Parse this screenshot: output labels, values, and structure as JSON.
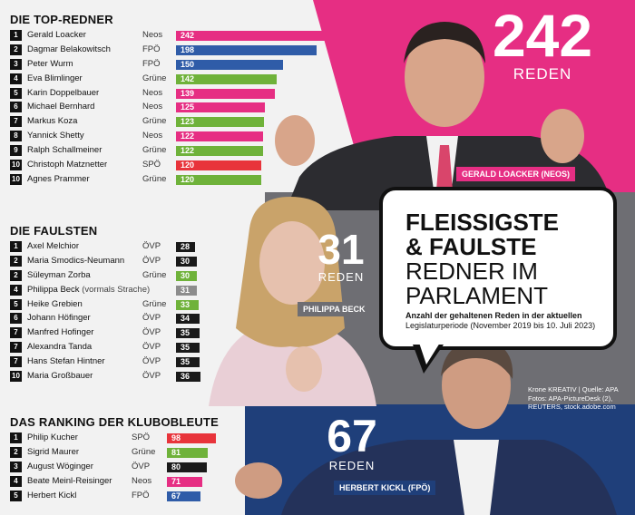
{
  "colors": {
    "Neos": "#e62e83",
    "FPÖ": "#2f5ca8",
    "Grüne": "#6fb23a",
    "SPÖ": "#e8343b",
    "ÖVP": "#1a1a1a",
    "Strache": "#8c8c8c"
  },
  "headline": {
    "line1": "FLEISSIGSTE",
    "line2": "& FAULSTE",
    "line3": "REDNER IM",
    "line4": "PARLAMENT",
    "sub_a": "Anzahl der gehaltenen Reden in der aktuellen",
    "sub_b": "Legislaturperiode (November 2019 bis 10. Juli 2023)"
  },
  "credit": {
    "line1": "Krone KREATIV | Quelle: APA",
    "line2": "Fotos: APA-PictureDesk (2),",
    "line3": "REUTERS, stock.adobe.com"
  },
  "callouts": [
    {
      "number": "242",
      "sub": "REDEN",
      "caption": "GERALD LOACKER (NEOS)"
    },
    {
      "number": "31",
      "sub": "REDEN",
      "caption": "PHILIPPA BECK"
    },
    {
      "number": "67",
      "sub": "REDEN",
      "caption": "HERBERT KICKL (FPÖ)"
    }
  ],
  "chart_data": [
    {
      "type": "bar",
      "title": "DIE TOP-REDNER",
      "xlim": [
        0,
        242
      ],
      "rows": [
        {
          "rank": "1",
          "name": "Gerald Loacker",
          "note": "",
          "party": "Neos",
          "value": 242
        },
        {
          "rank": "2",
          "name": "Dagmar Belakowitsch",
          "note": "",
          "party": "FPÖ",
          "value": 198
        },
        {
          "rank": "3",
          "name": "Peter Wurm",
          "note": "",
          "party": "FPÖ",
          "value": 150
        },
        {
          "rank": "4",
          "name": "Eva Blimlinger",
          "note": "",
          "party": "Grüne",
          "value": 142
        },
        {
          "rank": "5",
          "name": "Karin Doppelbauer",
          "note": "",
          "party": "Neos",
          "value": 139
        },
        {
          "rank": "6",
          "name": "Michael Bernhard",
          "note": "",
          "party": "Neos",
          "value": 125
        },
        {
          "rank": "7",
          "name": "Markus Koza",
          "note": "",
          "party": "Grüne",
          "value": 123
        },
        {
          "rank": "8",
          "name": "Yannick Shetty",
          "note": "",
          "party": "Neos",
          "value": 122
        },
        {
          "rank": "9",
          "name": "Ralph Schallmeiner",
          "note": "",
          "party": "Grüne",
          "value": 122
        },
        {
          "rank": "10",
          "name": "Christoph Matznetter",
          "note": "",
          "party": "SPÖ",
          "value": 120
        },
        {
          "rank": "10",
          "name": "Agnes Prammer",
          "note": "",
          "party": "Grüne",
          "value": 120
        }
      ]
    },
    {
      "type": "bar",
      "title": "DIE FAULSTEN",
      "xlim": [
        0,
        36
      ],
      "rows": [
        {
          "rank": "1",
          "name": "Axel Melchior",
          "note": "",
          "party": "ÖVP",
          "value": 28
        },
        {
          "rank": "2",
          "name": "Maria Smodics-Neumann",
          "note": "",
          "party": "ÖVP",
          "value": 30
        },
        {
          "rank": "2",
          "name": "Süleyman Zorba",
          "note": "",
          "party": "Grüne",
          "value": 30
        },
        {
          "rank": "4",
          "name": "Philippa Beck",
          "note": "(vormals Strache)",
          "party": "",
          "value": 31
        },
        {
          "rank": "5",
          "name": "Heike Grebien",
          "note": "",
          "party": "Grüne",
          "value": 33
        },
        {
          "rank": "6",
          "name": "Johann Höfinger",
          "note": "",
          "party": "ÖVP",
          "value": 34
        },
        {
          "rank": "7",
          "name": "Manfred Hofinger",
          "note": "",
          "party": "ÖVP",
          "value": 35
        },
        {
          "rank": "7",
          "name": "Alexandra Tanda",
          "note": "",
          "party": "ÖVP",
          "value": 35
        },
        {
          "rank": "7",
          "name": "Hans Stefan Hintner",
          "note": "",
          "party": "ÖVP",
          "value": 35
        },
        {
          "rank": "10",
          "name": "Maria Großbauer",
          "note": "",
          "party": "ÖVP",
          "value": 36
        }
      ]
    },
    {
      "type": "bar",
      "title": "DAS RANKING DER KLUBOBLEUTE",
      "xlim": [
        0,
        98
      ],
      "rows": [
        {
          "rank": "1",
          "name": "Philip Kucher",
          "note": "",
          "party": "SPÖ",
          "value": 98
        },
        {
          "rank": "2",
          "name": "Sigrid Maurer",
          "note": "",
          "party": "Grüne",
          "value": 81
        },
        {
          "rank": "3",
          "name": "August Wöginger",
          "note": "",
          "party": "ÖVP",
          "value": 80
        },
        {
          "rank": "4",
          "name": "Beate Meinl-Reisinger",
          "note": "",
          "party": "Neos",
          "value": 71
        },
        {
          "rank": "5",
          "name": "Herbert Kickl",
          "note": "",
          "party": "FPÖ",
          "value": 67
        }
      ]
    }
  ]
}
